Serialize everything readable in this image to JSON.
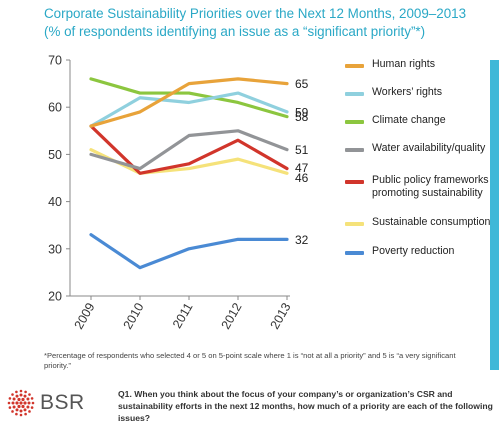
{
  "header": {
    "title": "Corporate Sustainability Priorities over the Next 12 Months, 2009–2013",
    "subtitle": "(% of respondents identifying an issue as a “significant priority”*)"
  },
  "chart_data": {
    "type": "line",
    "categories": [
      "2009",
      "2010",
      "2011",
      "2012",
      "2013"
    ],
    "ylim": [
      20,
      70
    ],
    "yticks": [
      20,
      30,
      40,
      50,
      60,
      70
    ],
    "grid": false,
    "legend_position": "right",
    "series": [
      {
        "name": "Human rights",
        "color": "#e8a33a",
        "values": [
          56,
          59,
          65,
          66,
          65
        ],
        "end_label": "65"
      },
      {
        "name": "Workers’ rights",
        "color": "#8fd0de",
        "values": [
          56,
          62,
          61,
          63,
          59
        ],
        "end_label": "59"
      },
      {
        "name": "Climate change",
        "color": "#8cc63f",
        "values": [
          66,
          63,
          63,
          61,
          58
        ],
        "end_label": "58"
      },
      {
        "name": "Water availability/quality",
        "color": "#929497",
        "values": [
          50,
          47,
          54,
          55,
          51
        ],
        "end_label": "51"
      },
      {
        "name": "Public policy frameworks promoting sustainability",
        "color": "#d1352b",
        "values": [
          56,
          46,
          48,
          53,
          47
        ],
        "end_label": "47"
      },
      {
        "name": "Sustainable consumption",
        "color": "#f5e27a",
        "values": [
          51,
          46,
          47,
          49,
          46
        ],
        "end_label": "46"
      },
      {
        "name": "Poverty reduction",
        "color": "#4a8ad4",
        "values": [
          33,
          26,
          30,
          32,
          32
        ],
        "end_label": "32"
      }
    ]
  },
  "footnote": "*Percentage of respondents who selected 4 or 5 on 5-point scale where 1 is “not at all a priority” and 5 is “a very significant priority.”",
  "brand": {
    "name": "BSR",
    "logo_icon": "sunburst-dots-icon",
    "accent": "#d1352b"
  },
  "question": "Q1. When you think about the focus of your company’s or organization’s CSR and sustainability efforts in the next 12 months, how much of a priority are each of the following issues?"
}
